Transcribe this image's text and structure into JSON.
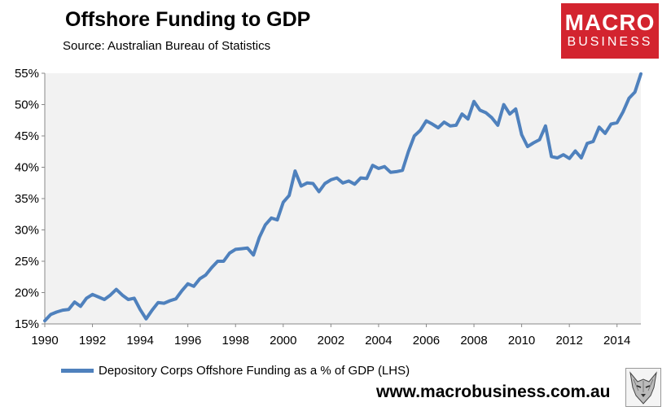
{
  "header": {
    "title": "Offshore Funding to GDP",
    "source": "Source:  Australian Bureau of Statistics"
  },
  "logo": {
    "line1": "MACRO",
    "line2": "BUSINESS"
  },
  "footer": {
    "website": "www.macrobusiness.com.au",
    "wolf_icon": "wolf-head-icon"
  },
  "colors": {
    "series": "#4f81bd",
    "plot_bg": "#f2f2f2",
    "logo_bg": "#d3242f"
  },
  "chart_data": {
    "type": "line",
    "title": "Offshore Funding to GDP",
    "xlabel": "",
    "ylabel": "",
    "xlim": [
      1990,
      2015
    ],
    "ylim": [
      15,
      55
    ],
    "x_ticks": [
      1990,
      1992,
      1994,
      1996,
      1998,
      2000,
      2002,
      2004,
      2006,
      2008,
      2010,
      2012,
      2014
    ],
    "x_tick_labels": [
      "1990",
      "1992",
      "1994",
      "1996",
      "1998",
      "2000",
      "2002",
      "2004",
      "2006",
      "2008",
      "2010",
      "2012",
      "2014"
    ],
    "y_ticks": [
      15,
      20,
      25,
      30,
      35,
      40,
      45,
      50,
      55
    ],
    "y_tick_labels": [
      "15%",
      "20%",
      "25%",
      "30%",
      "35%",
      "40%",
      "45%",
      "50%",
      "55%"
    ],
    "grid": false,
    "legend_position": "bottom-left",
    "series": [
      {
        "name": "Depository Corps Offshore Funding as a % of GDP (LHS)",
        "color": "#4f81bd",
        "x": [
          1990.0,
          1990.25,
          1990.5,
          1990.75,
          1991.0,
          1991.25,
          1991.5,
          1991.75,
          1992.0,
          1992.25,
          1992.5,
          1992.75,
          1993.0,
          1993.25,
          1993.5,
          1993.75,
          1994.0,
          1994.25,
          1994.5,
          1994.75,
          1995.0,
          1995.25,
          1995.5,
          1995.75,
          1996.0,
          1996.25,
          1996.5,
          1996.75,
          1997.0,
          1997.25,
          1997.5,
          1997.75,
          1998.0,
          1998.25,
          1998.5,
          1998.75,
          1999.0,
          1999.25,
          1999.5,
          1999.75,
          2000.0,
          2000.25,
          2000.5,
          2000.75,
          2001.0,
          2001.25,
          2001.5,
          2001.75,
          2002.0,
          2002.25,
          2002.5,
          2002.75,
          2003.0,
          2003.25,
          2003.5,
          2003.75,
          2004.0,
          2004.25,
          2004.5,
          2004.75,
          2005.0,
          2005.25,
          2005.5,
          2005.75,
          2006.0,
          2006.25,
          2006.5,
          2006.75,
          2007.0,
          2007.25,
          2007.5,
          2007.75,
          2008.0,
          2008.25,
          2008.5,
          2008.75,
          2009.0,
          2009.25,
          2009.5,
          2009.75,
          2010.0,
          2010.25,
          2010.5,
          2010.75,
          2011.0,
          2011.25,
          2011.5,
          2011.75,
          2012.0,
          2012.25,
          2012.5,
          2012.75,
          2013.0,
          2013.25,
          2013.5,
          2013.75,
          2014.0,
          2014.25,
          2014.5,
          2014.75,
          2015.0
        ],
        "values": [
          15.5,
          16.5,
          16.9,
          17.2,
          17.3,
          18.5,
          17.8,
          19.1,
          19.7,
          19.3,
          18.9,
          19.6,
          20.5,
          19.6,
          18.9,
          19.1,
          17.3,
          15.8,
          17.2,
          18.4,
          18.3,
          18.7,
          19.0,
          20.3,
          21.4,
          21.0,
          22.2,
          22.8,
          24.0,
          25.0,
          25.0,
          26.3,
          26.9,
          27.0,
          27.1,
          26.0,
          28.8,
          30.8,
          31.9,
          31.6,
          34.4,
          35.5,
          39.4,
          37.0,
          37.5,
          37.4,
          36.1,
          37.4,
          38.0,
          38.3,
          37.5,
          37.8,
          37.3,
          38.3,
          38.2,
          40.3,
          39.8,
          40.1,
          39.2,
          39.3,
          39.5,
          42.5,
          45.0,
          45.9,
          47.4,
          46.9,
          46.3,
          47.2,
          46.6,
          46.7,
          48.5,
          47.7,
          50.5,
          49.1,
          48.7,
          47.9,
          46.7,
          50.0,
          48.5,
          49.3,
          45.2,
          43.3,
          43.9,
          44.4,
          46.6,
          41.7,
          41.5,
          42.0,
          41.4,
          42.6,
          41.5,
          43.8,
          44.1,
          46.4,
          45.4,
          46.9,
          47.1,
          48.8,
          51.0,
          52.0,
          54.9
        ]
      }
    ]
  }
}
